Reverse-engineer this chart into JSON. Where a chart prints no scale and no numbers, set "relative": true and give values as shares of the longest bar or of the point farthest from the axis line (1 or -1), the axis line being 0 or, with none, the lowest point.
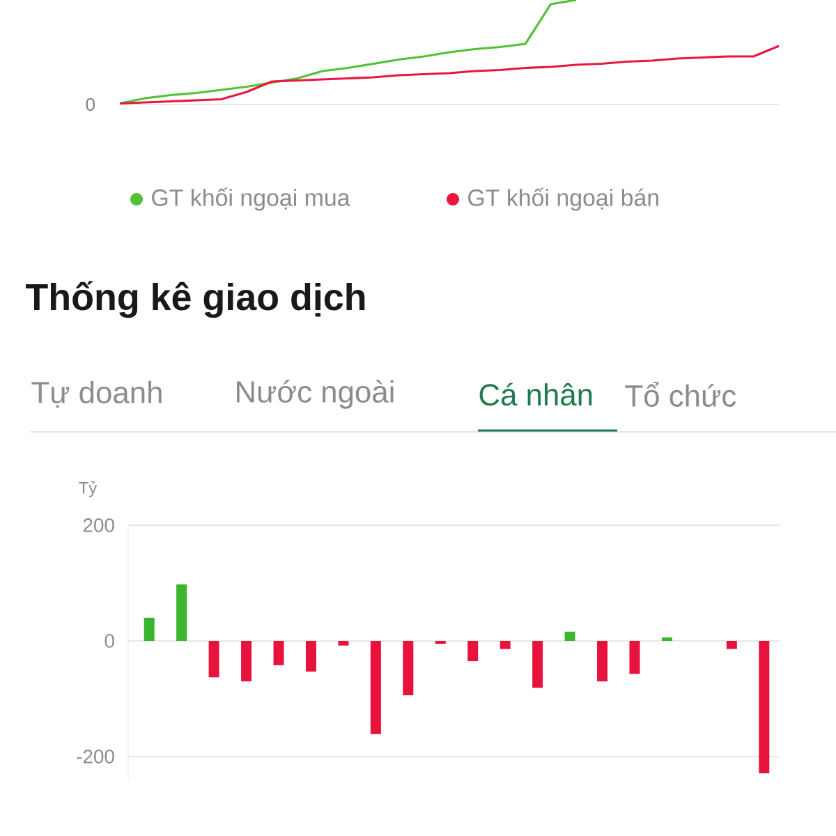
{
  "chart_data": [
    {
      "type": "line",
      "relative": true,
      "legend": "bottom",
      "annotations": [
        "0"
      ],
      "categories": [
        null,
        null,
        null,
        null,
        null,
        null,
        null,
        null,
        null,
        null,
        null,
        null,
        null,
        null,
        null,
        null,
        null,
        null,
        null,
        null,
        null,
        null,
        null,
        null,
        null,
        null,
        null
      ],
      "series": [
        {
          "name": "GT khối ngoại mua",
          "color": "#52c234",
          "values": [
            0.01,
            0.06,
            0.09,
            0.11,
            0.14,
            0.17,
            0.21,
            0.25,
            0.32,
            0.35,
            0.39,
            0.43,
            0.46,
            0.5,
            0.53,
            0.55,
            0.58,
            0.96,
            1.0,
            null,
            null,
            null,
            null,
            null,
            null,
            null,
            null
          ]
        },
        {
          "name": "GT khối ngoại bán",
          "color": "#e8173f",
          "values": [
            0.01,
            0.02,
            0.03,
            0.04,
            0.05,
            0.12,
            0.22,
            0.23,
            0.24,
            0.25,
            0.26,
            0.28,
            0.29,
            0.3,
            0.32,
            0.33,
            0.35,
            0.36,
            0.38,
            0.39,
            0.41,
            0.42,
            0.44,
            0.45,
            0.46,
            0.46,
            0.56
          ]
        }
      ]
    },
    {
      "type": "bar",
      "title": "Thống kê giao dịch",
      "ylabel": "Tỷ",
      "annotations": [
        "Tự doanh",
        "Nước ngoài",
        "Cá nhân",
        "Tổ chức"
      ],
      "categories": [
        null,
        null,
        null,
        null,
        null,
        null,
        null,
        null,
        null,
        null,
        null,
        null,
        null,
        null,
        null,
        null,
        null,
        null,
        null,
        null
      ],
      "values": [
        40,
        98,
        -63,
        -70,
        -42,
        -53,
        -8,
        -161,
        -94,
        -5,
        -35,
        -14,
        -81,
        16,
        -70,
        -57,
        6,
        0,
        -14,
        -229
      ],
      "colors": [
        "#3cb52e",
        "#3cb52e",
        "#e8133c",
        "#e8133c",
        "#e8133c",
        "#e8133c",
        "#e8133c",
        "#e8133c",
        "#e8133c",
        "#e8133c",
        "#e8133c",
        "#e8133c",
        "#e8133c",
        "#3cb52e",
        "#e8133c",
        "#e8133c",
        "#3cb52e",
        "#e8133c",
        "#e8133c",
        "#e8133c"
      ],
      "ylim": [
        -240,
        200
      ],
      "yticks": [
        -200,
        0,
        200
      ],
      "grid": "y"
    }
  ]
}
